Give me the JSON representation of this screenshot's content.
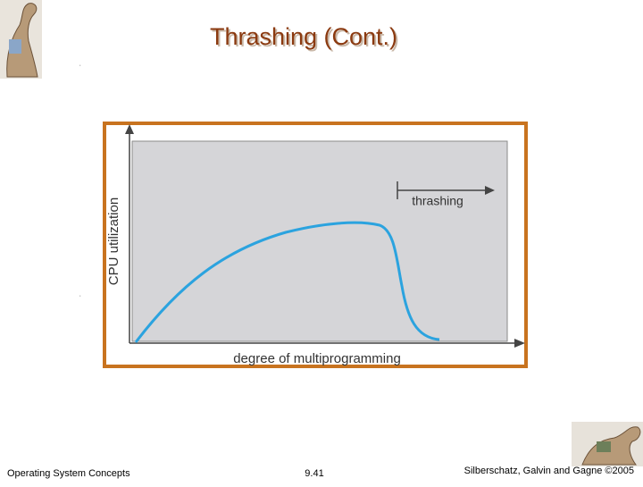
{
  "header": {
    "title": "Thrashing (Cont.)"
  },
  "figure": {
    "y_axis_label": "CPU utilization",
    "x_axis_label": "degree of multiprogramming",
    "annotation": "thrashing"
  },
  "footer": {
    "course": "Operating System Concepts",
    "page": "9.41",
    "copyright": "Silberschatz, Galvin and Gagne ©2005"
  }
}
